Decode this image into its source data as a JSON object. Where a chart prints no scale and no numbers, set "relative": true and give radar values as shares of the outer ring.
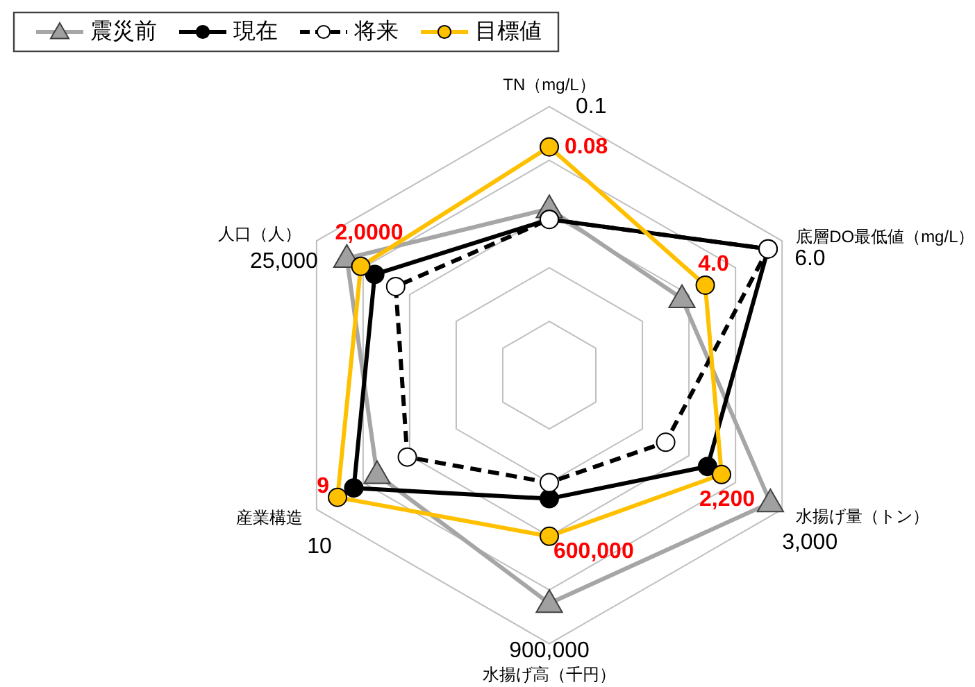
{
  "chart_data": {
    "type": "radar",
    "relative": true,
    "categories": [
      "TN（mg/L）",
      "底層DO最低値（mg/L）",
      "水揚げ量（トン）",
      "水揚げ高（千円）",
      "産業構造",
      "人口（人）"
    ],
    "series": [
      {
        "name": "震災前",
        "color": "#a6a6a6",
        "marker": "triangle",
        "values": [
          0.62,
          0.57,
          0.95,
          0.85,
          0.74,
          0.87
        ]
      },
      {
        "name": "現在",
        "color": "#000000",
        "marker": "circle",
        "values": [
          0.58,
          0.94,
          0.68,
          0.46,
          0.84,
          0.75
        ]
      },
      {
        "name": "将来",
        "color": "#000000",
        "marker": "circle",
        "line_style": "dashed",
        "values": [
          0.58,
          0.94,
          0.5,
          0.4,
          0.61,
          0.66
        ]
      },
      {
        "name": "目標値",
        "color": "#ffc000",
        "marker": "circle",
        "values": [
          0.85,
          0.67,
          0.74,
          0.6,
          0.91,
          0.81
        ]
      }
    ],
    "annotations": [
      "0.1",
      "6.0",
      "3,000",
      "900,000",
      "10",
      "25,000",
      {
        "text": "0.08",
        "x": "TN（mg/L）"
      },
      {
        "text": "4.0",
        "x": "底層DO最低値（mg/L）"
      },
      {
        "text": "2,200",
        "x": "水揚げ量（トン）"
      },
      {
        "text": "600,000",
        "x": "水揚げ高（千円）"
      },
      {
        "text": "9",
        "x": "産業構造"
      },
      {
        "text": "2,0000",
        "x": "人口（人）"
      }
    ],
    "grid": true,
    "legend": "top left"
  }
}
